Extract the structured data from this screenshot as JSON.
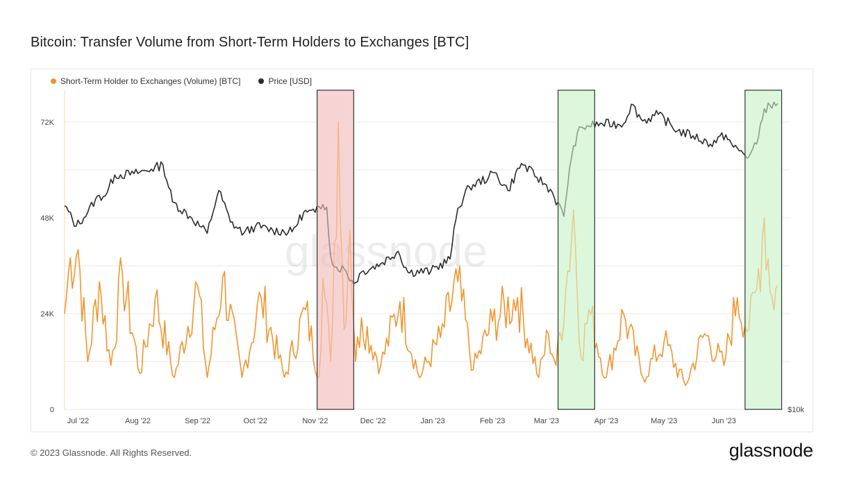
{
  "title": "Bitcoin: Transfer Volume from Short-Term Holders to Exchanges [BTC]",
  "footer": "© 2023 Glassnode. All Rights Reserved.",
  "brand": "glassnode",
  "watermark": "glassnode",
  "colors": {
    "volume": "#f0952e",
    "price": "#2b2b2b",
    "red_zone_fill": "#f7d4d4",
    "green_zone_fill": "#dcf7dc",
    "zone_border": "#333333",
    "grid": "#e9e9e9"
  },
  "chart_data": {
    "type": "line",
    "title": "Bitcoin: Transfer Volume from Short-Term Holders to Exchanges [BTC]",
    "x_tick_labels": [
      "Jul '22",
      "Aug '22",
      "Sep '22",
      "Oct '22",
      "Nov '22",
      "Dec '22",
      "Jan '23",
      "Feb '23",
      "Mar '23",
      "Apr '23",
      "May '23",
      "Jun '23"
    ],
    "x_range": [
      "2022-06-24",
      "2023-06-29"
    ],
    "y_left": {
      "ticks": [
        0,
        24000,
        48000,
        72000
      ],
      "tick_labels": [
        "0",
        "24K",
        "48K",
        "72K"
      ],
      "range": [
        0,
        80000
      ]
    },
    "y_right": {
      "tick_labels": [
        "$10k"
      ],
      "scale": "log",
      "range_usd": [
        10000,
        32000
      ]
    },
    "grid": "horizontal",
    "legend_placement": "top-left",
    "series": [
      {
        "name": "Short-Term Holder to Exchanges (Volume) [BTC]",
        "axis": "left",
        "anchors": [
          [
            "2022-06-24",
            24000
          ],
          [
            "2022-06-27",
            38000
          ],
          [
            "2022-07-01",
            40000
          ],
          [
            "2022-07-06",
            12000
          ],
          [
            "2022-07-12",
            32000
          ],
          [
            "2022-07-18",
            11000
          ],
          [
            "2022-07-24",
            34000
          ],
          [
            "2022-08-02",
            9000
          ],
          [
            "2022-08-10",
            28000
          ],
          [
            "2022-08-20",
            8000
          ],
          [
            "2022-09-01",
            31000
          ],
          [
            "2022-09-06",
            8000
          ],
          [
            "2022-09-14",
            33000
          ],
          [
            "2022-09-24",
            8000
          ],
          [
            "2022-10-04",
            28000
          ],
          [
            "2022-10-16",
            8000
          ],
          [
            "2022-10-27",
            25000
          ],
          [
            "2022-11-03",
            8000
          ],
          [
            "2022-11-05",
            33000
          ],
          [
            "2022-11-09",
            12000
          ],
          [
            "2022-11-13",
            72000
          ],
          [
            "2022-11-16",
            20000
          ],
          [
            "2022-11-19",
            45000
          ],
          [
            "2022-11-22",
            12000
          ],
          [
            "2022-11-25",
            23000
          ],
          [
            "2022-12-05",
            11000
          ],
          [
            "2022-12-15",
            27000
          ],
          [
            "2022-12-25",
            8000
          ],
          [
            "2023-01-05",
            18000
          ],
          [
            "2023-01-14",
            32000
          ],
          [
            "2023-01-22",
            10000
          ],
          [
            "2023-02-01",
            22000
          ],
          [
            "2023-02-14",
            28000
          ],
          [
            "2023-02-25",
            8000
          ],
          [
            "2023-03-02",
            19000
          ],
          [
            "2023-03-06",
            11000
          ],
          [
            "2023-03-11",
            30000
          ],
          [
            "2023-03-15",
            50000
          ],
          [
            "2023-03-19",
            13000
          ],
          [
            "2023-03-23",
            25000
          ],
          [
            "2023-04-01",
            8000
          ],
          [
            "2023-04-10",
            24000
          ],
          [
            "2023-04-20",
            8000
          ],
          [
            "2023-05-01",
            17000
          ],
          [
            "2023-05-12",
            6000
          ],
          [
            "2023-05-22",
            19000
          ],
          [
            "2023-06-01",
            11000
          ],
          [
            "2023-06-08",
            28000
          ],
          [
            "2023-06-14",
            20000
          ],
          [
            "2023-06-18",
            30000
          ],
          [
            "2023-06-22",
            48000
          ],
          [
            "2023-06-26",
            28000
          ],
          [
            "2023-06-29",
            31000
          ]
        ]
      },
      {
        "name": "Price [USD]",
        "axis": "right",
        "anchors": [
          [
            "2022-06-24",
            21000
          ],
          [
            "2022-06-30",
            19500
          ],
          [
            "2022-07-06",
            20500
          ],
          [
            "2022-07-10",
            21500
          ],
          [
            "2022-07-16",
            22000
          ],
          [
            "2022-07-20",
            23500
          ],
          [
            "2022-07-30",
            23600
          ],
          [
            "2022-08-08",
            24000
          ],
          [
            "2022-08-14",
            24400
          ],
          [
            "2022-08-19",
            21300
          ],
          [
            "2022-08-28",
            20200
          ],
          [
            "2022-09-06",
            19000
          ],
          [
            "2022-09-12",
            22200
          ],
          [
            "2022-09-18",
            19800
          ],
          [
            "2022-09-25",
            19000
          ],
          [
            "2022-10-01",
            19500
          ],
          [
            "2022-10-10",
            19200
          ],
          [
            "2022-10-20",
            19100
          ],
          [
            "2022-10-26",
            20500
          ],
          [
            "2022-11-01",
            20500
          ],
          [
            "2022-11-05",
            21100
          ],
          [
            "2022-11-07",
            20900
          ],
          [
            "2022-11-09",
            17500
          ],
          [
            "2022-11-11",
            16800
          ],
          [
            "2022-11-16",
            16700
          ],
          [
            "2022-11-21",
            15800
          ],
          [
            "2022-11-25",
            16500
          ],
          [
            "2022-12-05",
            17000
          ],
          [
            "2022-12-14",
            17800
          ],
          [
            "2022-12-19",
            16500
          ],
          [
            "2022-12-31",
            16550
          ],
          [
            "2023-01-10",
            17300
          ],
          [
            "2023-01-14",
            20800
          ],
          [
            "2023-01-20",
            22500
          ],
          [
            "2023-01-30",
            23300
          ],
          [
            "2023-02-02",
            23700
          ],
          [
            "2023-02-09",
            22200
          ],
          [
            "2023-02-16",
            24500
          ],
          [
            "2023-02-24",
            23300
          ],
          [
            "2023-03-03",
            22300
          ],
          [
            "2023-03-10",
            20200
          ],
          [
            "2023-03-13",
            24100
          ],
          [
            "2023-03-17",
            27400
          ],
          [
            "2023-03-22",
            28100
          ],
          [
            "2023-03-30",
            28300
          ],
          [
            "2023-04-10",
            28300
          ],
          [
            "2023-04-14",
            30400
          ],
          [
            "2023-04-20",
            28600
          ],
          [
            "2023-04-28",
            29300
          ],
          [
            "2023-05-08",
            27600
          ],
          [
            "2023-05-16",
            27100
          ],
          [
            "2023-05-25",
            26300
          ],
          [
            "2023-06-02",
            27200
          ],
          [
            "2023-06-06",
            26000
          ],
          [
            "2023-06-14",
            25100
          ],
          [
            "2023-06-18",
            26300
          ],
          [
            "2023-06-22",
            29900
          ],
          [
            "2023-06-29",
            30500
          ]
        ]
      }
    ],
    "highlight_regions": [
      {
        "color": "red",
        "from": "2022-11-02",
        "to": "2022-11-21"
      },
      {
        "color": "green",
        "from": "2023-03-07",
        "to": "2023-03-26"
      },
      {
        "color": "green",
        "from": "2023-06-12",
        "to": "2023-07-01"
      }
    ]
  },
  "legend": {
    "volume_label": "Short-Term Holder to Exchanges (Volume) [BTC]",
    "price_label": "Price [USD]"
  }
}
